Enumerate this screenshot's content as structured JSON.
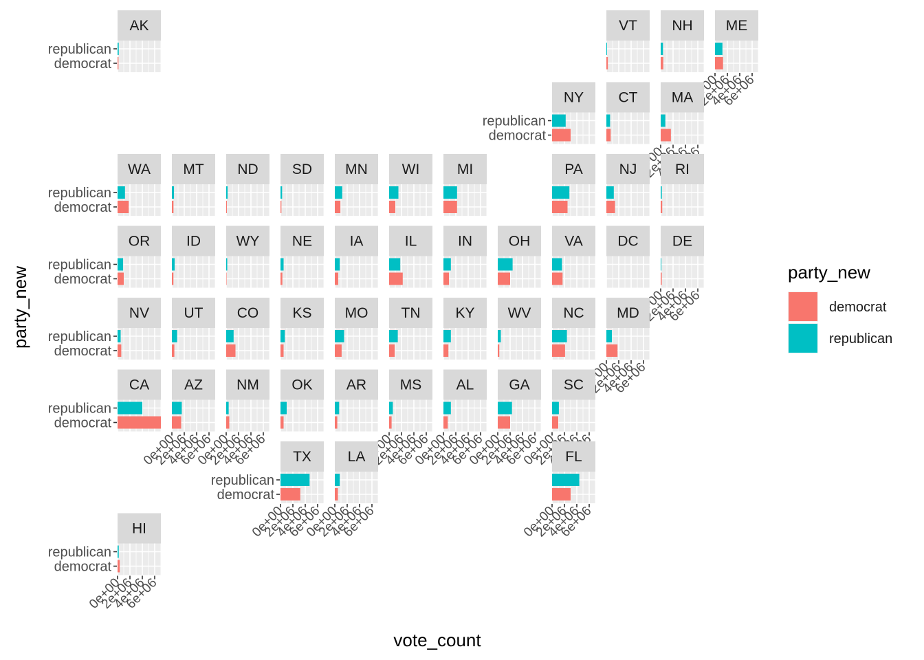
{
  "chart_data": {
    "type": "bar",
    "orientation": "horizontal",
    "layout": "US state grid (geofacet)",
    "xlabel": "vote_count",
    "ylabel": "party_new",
    "categories": [
      "democrat",
      "republican"
    ],
    "xlim": [
      0,
      7000000
    ],
    "x_ticks": [
      0,
      2000000,
      4000000,
      6000000
    ],
    "x_tick_labels": [
      "0e+00",
      "2e+06",
      "4e+06",
      "6e+06"
    ],
    "colors": {
      "democrat": "#F8766D",
      "republican": "#00BFC4",
      "strip": "#D9D9D9",
      "panel": "#EBEBEB",
      "grid": "#FFFFFF"
    },
    "legend": {
      "title": "party_new",
      "position": "right",
      "items": [
        "democrat",
        "republican"
      ]
    },
    "facets": [
      {
        "state": "AK",
        "col": 1,
        "row": 1,
        "democrat": 150000,
        "republican": 190000
      },
      {
        "state": "VT",
        "col": 10,
        "row": 1,
        "democrat": 240000,
        "republican": 110000
      },
      {
        "state": "NH",
        "col": 11,
        "row": 1,
        "democrat": 420000,
        "republican": 370000
      },
      {
        "state": "ME",
        "col": 12,
        "row": 1,
        "democrat": 1300000,
        "republican": 1200000
      },
      {
        "state": "NY",
        "col": 9,
        "row": 2,
        "democrat": 3000000,
        "republican": 2200000
      },
      {
        "state": "CT",
        "col": 10,
        "row": 2,
        "democrat": 700000,
        "republican": 600000
      },
      {
        "state": "MA",
        "col": 11,
        "row": 2,
        "democrat": 1650000,
        "republican": 750000
      },
      {
        "state": "WA",
        "col": 1,
        "row": 3,
        "democrat": 1800000,
        "republican": 1200000
      },
      {
        "state": "MT",
        "col": 2,
        "row": 3,
        "democrat": 260000,
        "republican": 340000
      },
      {
        "state": "ND",
        "col": 3,
        "row": 3,
        "democrat": 110000,
        "republican": 230000
      },
      {
        "state": "SD",
        "col": 4,
        "row": 3,
        "democrat": 150000,
        "republican": 260000
      },
      {
        "state": "MN",
        "col": 5,
        "row": 3,
        "democrat": 900000,
        "republican": 1200000
      },
      {
        "state": "WI",
        "col": 6,
        "row": 3,
        "democrat": 1000000,
        "republican": 1500000
      },
      {
        "state": "MI",
        "col": 7,
        "row": 3,
        "democrat": 2200000,
        "republican": 2200000
      },
      {
        "state": "PA",
        "col": 9,
        "row": 3,
        "democrat": 2500000,
        "republican": 2800000
      },
      {
        "state": "NJ",
        "col": 10,
        "row": 3,
        "democrat": 1400000,
        "republican": 1200000
      },
      {
        "state": "RI",
        "col": 11,
        "row": 3,
        "democrat": 250000,
        "republican": 180000
      },
      {
        "state": "OR",
        "col": 1,
        "row": 4,
        "democrat": 1000000,
        "republican": 900000
      },
      {
        "state": "ID",
        "col": 2,
        "row": 4,
        "democrat": 250000,
        "republican": 450000
      },
      {
        "state": "WY",
        "col": 3,
        "row": 4,
        "democrat": 60000,
        "republican": 170000
      },
      {
        "state": "NE",
        "col": 4,
        "row": 4,
        "democrat": 300000,
        "republican": 500000
      },
      {
        "state": "IA",
        "col": 5,
        "row": 4,
        "democrat": 550000,
        "republican": 800000
      },
      {
        "state": "IL",
        "col": 6,
        "row": 4,
        "democrat": 2200000,
        "republican": 1800000
      },
      {
        "state": "IN",
        "col": 7,
        "row": 4,
        "democrat": 900000,
        "republican": 1200000
      },
      {
        "state": "OH",
        "col": 8,
        "row": 4,
        "democrat": 2000000,
        "republican": 2400000
      },
      {
        "state": "VA",
        "col": 9,
        "row": 4,
        "democrat": 1700000,
        "republican": 1600000
      },
      {
        "state": "DC",
        "col": 10,
        "row": 4,
        "democrat": 0,
        "republican": 0
      },
      {
        "state": "DE",
        "col": 11,
        "row": 4,
        "democrat": 170000,
        "republican": 110000
      },
      {
        "state": "NV",
        "col": 1,
        "row": 5,
        "democrat": 600000,
        "republican": 500000
      },
      {
        "state": "UT",
        "col": 2,
        "row": 5,
        "democrat": 400000,
        "republican": 850000
      },
      {
        "state": "CO",
        "col": 3,
        "row": 5,
        "democrat": 1500000,
        "republican": 1200000
      },
      {
        "state": "KS",
        "col": 4,
        "row": 5,
        "democrat": 500000,
        "republican": 700000
      },
      {
        "state": "MO",
        "col": 5,
        "row": 5,
        "democrat": 1100000,
        "republican": 1500000
      },
      {
        "state": "TN",
        "col": 6,
        "row": 5,
        "democrat": 900000,
        "republican": 1400000
      },
      {
        "state": "KY",
        "col": 7,
        "row": 5,
        "democrat": 800000,
        "republican": 1200000
      },
      {
        "state": "WV",
        "col": 8,
        "row": 5,
        "democrat": 250000,
        "republican": 500000
      },
      {
        "state": "NC",
        "col": 9,
        "row": 5,
        "democrat": 2100000,
        "republican": 2400000
      },
      {
        "state": "MD",
        "col": 10,
        "row": 5,
        "democrat": 1800000,
        "republican": 900000
      },
      {
        "state": "CA",
        "col": 1,
        "row": 6,
        "democrat": 7000000,
        "republican": 4000000
      },
      {
        "state": "AZ",
        "col": 2,
        "row": 6,
        "democrat": 1500000,
        "republican": 1600000
      },
      {
        "state": "NM",
        "col": 3,
        "row": 6,
        "democrat": 500000,
        "republican": 400000
      },
      {
        "state": "OK",
        "col": 4,
        "row": 6,
        "democrat": 500000,
        "republican": 1000000
      },
      {
        "state": "AR",
        "col": 5,
        "row": 6,
        "democrat": 400000,
        "republican": 700000
      },
      {
        "state": "MS",
        "col": 6,
        "row": 6,
        "democrat": 400000,
        "republican": 600000
      },
      {
        "state": "AL",
        "col": 7,
        "row": 6,
        "democrat": 700000,
        "republican": 1200000
      },
      {
        "state": "GA",
        "col": 8,
        "row": 6,
        "democrat": 2000000,
        "republican": 2300000
      },
      {
        "state": "SC",
        "col": 9,
        "row": 6,
        "democrat": 1000000,
        "republican": 1100000
      },
      {
        "state": "TX",
        "col": 4,
        "row": 7,
        "democrat": 3200000,
        "republican": 4700000
      },
      {
        "state": "LA",
        "col": 5,
        "row": 7,
        "democrat": 500000,
        "republican": 800000
      },
      {
        "state": "FL",
        "col": 9,
        "row": 7,
        "democrat": 3000000,
        "republican": 4400000
      },
      {
        "state": "HI",
        "col": 1,
        "row": 8,
        "democrat": 350000,
        "republican": 190000
      }
    ],
    "y_axis_panels": [
      "AK",
      "NY",
      "WA",
      "OR",
      "NV",
      "CA",
      "TX",
      "HI"
    ],
    "x_axis_panels": [
      "ME",
      "MA",
      "DE",
      "MD",
      "SC",
      "AZ",
      "NM",
      "MS",
      "AL",
      "GA",
      "TX",
      "LA",
      "FL",
      "HI"
    ]
  }
}
